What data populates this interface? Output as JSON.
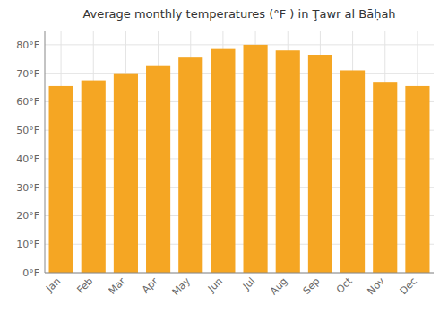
{
  "chart_data": {
    "type": "bar",
    "title": "Average monthly temperatures (°F ) in Ţawr al Bāḥah",
    "categories": [
      "Jan",
      "Feb",
      "Mar",
      "Apr",
      "May",
      "Jun",
      "Jul",
      "Aug",
      "Sep",
      "Oct",
      "Nov",
      "Dec"
    ],
    "values": [
      65.5,
      67.5,
      70.0,
      72.5,
      75.5,
      78.5,
      80.0,
      78.0,
      76.5,
      71.0,
      67.0,
      65.5
    ],
    "color": "#F5A623",
    "ylim": [
      0,
      85
    ],
    "yticks": [
      {
        "value": 0,
        "label": "0°F"
      },
      {
        "value": 10,
        "label": "10°F"
      },
      {
        "value": 20,
        "label": "20°F"
      },
      {
        "value": 30,
        "label": "30°F"
      },
      {
        "value": 40,
        "label": "40°F"
      },
      {
        "value": 50,
        "label": "50°F"
      },
      {
        "value": 60,
        "label": "60°F"
      },
      {
        "value": 70,
        "label": "70°F"
      },
      {
        "value": 80,
        "label": "80°F"
      }
    ],
    "grid": true
  }
}
